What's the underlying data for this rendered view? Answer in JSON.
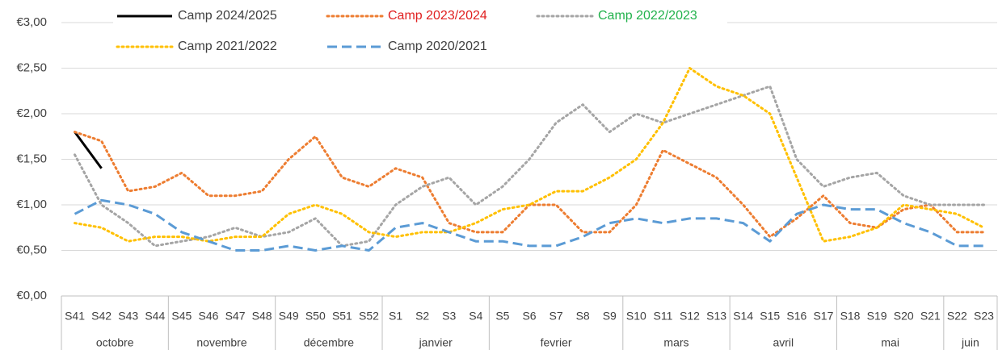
{
  "chart_data": {
    "type": "line",
    "categories": [
      "S41",
      "S42",
      "S43",
      "S44",
      "S45",
      "S46",
      "S47",
      "S48",
      "S49",
      "S50",
      "S51",
      "S52",
      "S1",
      "S2",
      "S3",
      "S4",
      "S5",
      "S6",
      "S7",
      "S8",
      "S9",
      "S10",
      "S11",
      "S12",
      "S13",
      "S14",
      "S15",
      "S16",
      "S17",
      "S18",
      "S19",
      "S20",
      "S21",
      "S22",
      "S23"
    ],
    "groups": [
      {
        "label": "octobre",
        "span": 4
      },
      {
        "label": "novembre",
        "span": 4
      },
      {
        "label": "décembre",
        "span": 4
      },
      {
        "label": "janvier",
        "span": 4
      },
      {
        "label": "fevrier",
        "span": 5
      },
      {
        "label": "mars",
        "span": 4
      },
      {
        "label": "avril",
        "span": 4
      },
      {
        "label": "mai",
        "span": 4
      },
      {
        "label": "juin",
        "span": 2
      }
    ],
    "series": [
      {
        "name": "Camp 2024/2025",
        "color": "#000000",
        "dash": "solid",
        "legend_text_color": "#404040",
        "values": [
          1.8,
          1.4,
          null,
          null,
          null,
          null,
          null,
          null,
          null,
          null,
          null,
          null,
          null,
          null,
          null,
          null,
          null,
          null,
          null,
          null,
          null,
          null,
          null,
          null,
          null,
          null,
          null,
          null,
          null,
          null,
          null,
          null,
          null,
          null,
          null
        ]
      },
      {
        "name": "Camp 2023/2024",
        "color": "#ed7d31",
        "dash": "dotted",
        "legend_text_color": "#e02020",
        "values": [
          1.8,
          1.7,
          1.15,
          1.2,
          1.35,
          1.1,
          1.1,
          1.15,
          1.5,
          1.75,
          1.3,
          1.2,
          1.4,
          1.3,
          0.8,
          0.7,
          0.7,
          1.0,
          1.0,
          0.7,
          0.7,
          1.0,
          1.6,
          1.45,
          1.3,
          1.0,
          0.65,
          0.85,
          1.1,
          0.8,
          0.75,
          0.95,
          1.0,
          0.7,
          0.7
        ]
      },
      {
        "name": "Camp 2022/2023",
        "color": "#a5a5a5",
        "dash": "dotted",
        "legend_text_color": "#22b24c",
        "values": [
          1.55,
          1.0,
          0.8,
          0.55,
          0.6,
          0.65,
          0.75,
          0.65,
          0.7,
          0.85,
          0.55,
          0.6,
          1.0,
          1.2,
          1.3,
          1.0,
          1.2,
          1.5,
          1.9,
          2.1,
          1.8,
          2.0,
          1.9,
          2.0,
          2.1,
          2.2,
          2.3,
          1.5,
          1.2,
          1.3,
          1.35,
          1.1,
          1.0,
          1.0,
          1.0
        ]
      },
      {
        "name": "Camp 2021/2022",
        "color": "#ffc000",
        "dash": "dotted",
        "legend_text_color": "#404040",
        "values": [
          0.8,
          0.75,
          0.6,
          0.65,
          0.65,
          0.6,
          0.65,
          0.65,
          0.9,
          1.0,
          0.9,
          0.7,
          0.65,
          0.7,
          0.7,
          0.8,
          0.95,
          1.0,
          1.15,
          1.15,
          1.3,
          1.5,
          1.9,
          2.5,
          2.3,
          2.2,
          2.0,
          1.3,
          0.6,
          0.65,
          0.75,
          1.0,
          0.95,
          0.9,
          0.75
        ]
      },
      {
        "name": "Camp 2020/2021",
        "color": "#5b9bd5",
        "dash": "dashed",
        "legend_text_color": "#404040",
        "values": [
          0.9,
          1.05,
          1.0,
          0.9,
          0.7,
          0.6,
          0.5,
          0.5,
          0.55,
          0.5,
          0.55,
          0.5,
          0.75,
          0.8,
          0.7,
          0.6,
          0.6,
          0.55,
          0.55,
          0.65,
          0.8,
          0.85,
          0.8,
          0.85,
          0.85,
          0.8,
          0.6,
          0.9,
          1.0,
          0.95,
          0.95,
          0.8,
          0.7,
          0.55,
          0.55
        ]
      }
    ],
    "ylim": [
      0,
      3
    ],
    "yticks": [
      {
        "value": 0,
        "label": "€0,00"
      },
      {
        "value": 0.5,
        "label": "€0,50"
      },
      {
        "value": 1,
        "label": "€1,00"
      },
      {
        "value": 1.5,
        "label": "€1,50"
      },
      {
        "value": 2,
        "label": "€2,00"
      },
      {
        "value": 2.5,
        "label": "€2,50"
      },
      {
        "value": 3,
        "label": "€3,00"
      }
    ],
    "grid": true
  }
}
